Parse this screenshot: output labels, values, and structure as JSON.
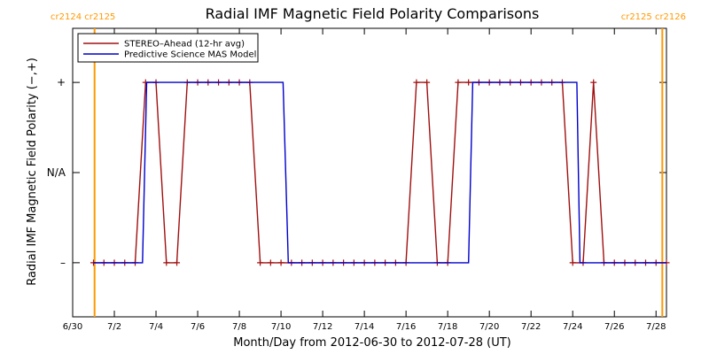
{
  "chart_data": {
    "type": "line",
    "title": "Radial IMF Magnetic Field Polarity Comparisons",
    "xlabel": "Month/Day from 2012-06-30 to 2012-07-28 (UT)",
    "ylabel": "Radial IMF Magnetic Field Polarity (−,+)",
    "x_unit": "days from 2012-06-30 00:00 UT",
    "xlim": [
      0,
      28.5
    ],
    "ylim": [
      -1.6,
      1.6
    ],
    "x_ticks": [
      {
        "x": 0,
        "label": "6/30"
      },
      {
        "x": 2,
        "label": "7/2"
      },
      {
        "x": 4,
        "label": "7/4"
      },
      {
        "x": 6,
        "label": "7/6"
      },
      {
        "x": 8,
        "label": "7/8"
      },
      {
        "x": 10,
        "label": "7/10"
      },
      {
        "x": 12,
        "label": "7/12"
      },
      {
        "x": 14,
        "label": "7/14"
      },
      {
        "x": 16,
        "label": "7/16"
      },
      {
        "x": 18,
        "label": "7/18"
      },
      {
        "x": 20,
        "label": "7/20"
      },
      {
        "x": 22,
        "label": "7/22"
      },
      {
        "x": 24,
        "label": "7/24"
      },
      {
        "x": 26,
        "label": "7/26"
      },
      {
        "x": 28,
        "label": "7/28"
      }
    ],
    "y_ticks": [
      {
        "y": 1,
        "label": "+"
      },
      {
        "y": 0,
        "label": "N/A"
      },
      {
        "y": -1,
        "label": "–"
      }
    ],
    "grid": false,
    "legend_position": "top-left",
    "carrington_markers": [
      {
        "x": 1.05,
        "label": "cr2124 cr2125",
        "color": "#ff9900"
      },
      {
        "x": 28.3,
        "label": "cr2125 cr2126",
        "color": "#ff9900"
      }
    ],
    "series": [
      {
        "name": "STEREO–Ahead (12-hr avg)",
        "color": "#a01010",
        "marker": "+",
        "x": [
          1.0,
          1.5,
          2.0,
          2.5,
          3.0,
          3.5,
          4.0,
          4.5,
          5.0,
          5.5,
          6.0,
          6.5,
          7.0,
          7.5,
          8.0,
          8.5,
          9.0,
          9.5,
          10.0,
          10.5,
          11.0,
          11.5,
          12.0,
          12.5,
          13.0,
          13.5,
          14.0,
          14.5,
          15.0,
          15.5,
          16.0,
          16.5,
          17.0,
          17.5,
          18.0,
          18.5,
          19.0,
          19.5,
          20.0,
          20.5,
          21.0,
          21.5,
          22.0,
          22.5,
          23.0,
          23.5,
          24.0,
          24.5,
          25.0,
          25.5,
          26.0,
          26.5,
          27.0,
          27.5,
          28.0,
          28.5
        ],
        "y": [
          -1,
          -1,
          -1,
          -1,
          -1,
          1,
          1,
          -1,
          -1,
          1,
          1,
          1,
          1,
          1,
          1,
          1,
          -1,
          -1,
          -1,
          -1,
          -1,
          -1,
          -1,
          -1,
          -1,
          -1,
          -1,
          -1,
          -1,
          -1,
          -1,
          1,
          1,
          -1,
          -1,
          1,
          1,
          1,
          1,
          1,
          1,
          1,
          1,
          1,
          1,
          1,
          -1,
          -1,
          1,
          -1,
          -1,
          -1,
          -1,
          -1,
          -1,
          -1
        ]
      },
      {
        "name": "Predictive Science MAS Model",
        "color": "#0000cc",
        "marker": "",
        "x": [
          1.0,
          3.35,
          3.55,
          10.1,
          10.35,
          19.0,
          19.2,
          24.2,
          24.35,
          28.5
        ],
        "y": [
          -1,
          -1,
          1,
          1,
          -1,
          -1,
          1,
          1,
          -1,
          -1
        ]
      }
    ]
  }
}
